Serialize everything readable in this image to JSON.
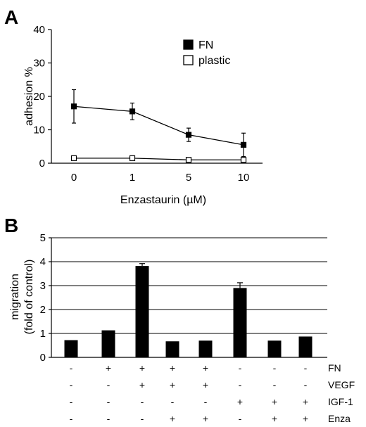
{
  "chart_data": [
    {
      "panel": "A",
      "type": "line",
      "x": [
        "0",
        "1",
        "5",
        "10"
      ],
      "xlabel": "Enzastaurin (µM)",
      "ylabel": "adhesion %",
      "ylim": [
        0,
        40
      ],
      "yticks": [
        "0",
        "10",
        "20",
        "30",
        "40"
      ],
      "grid": false,
      "legend_position": "top-right",
      "series": [
        {
          "name": "FN",
          "values": [
            17,
            15.5,
            8.5,
            5.5
          ],
          "errors": [
            5,
            2.5,
            2,
            3.5
          ],
          "marker": "filled-square",
          "color": "#000000"
        },
        {
          "name": "plastic",
          "values": [
            1.5,
            1.5,
            1,
            1
          ],
          "errors": [
            0,
            0,
            0,
            0
          ],
          "marker": "open-square",
          "color": "#000000"
        }
      ]
    },
    {
      "panel": "B",
      "type": "bar",
      "ylabel": "migration",
      "ylabel2": "(fold of control)",
      "ylim": [
        0,
        5
      ],
      "yticks": [
        "0",
        "1",
        "2",
        "3",
        "4",
        "5"
      ],
      "grid": true,
      "bar_color": "#000000",
      "values": [
        0.72,
        1.13,
        3.82,
        0.67,
        0.7,
        2.9,
        0.7,
        0.87
      ],
      "errors": [
        0,
        0,
        0.1,
        0,
        0,
        0.22,
        0,
        0
      ],
      "conditions": [
        {
          "label": "FN",
          "signs": [
            "-",
            "+",
            "+",
            "+",
            "+",
            "-",
            "-",
            "-"
          ]
        },
        {
          "label": "VEGF",
          "signs": [
            "-",
            "-",
            "+",
            "+",
            "+",
            "-",
            "-",
            "-"
          ]
        },
        {
          "label": "IGF-1",
          "signs": [
            "-",
            "-",
            "-",
            "-",
            "-",
            "+",
            "+",
            "+"
          ]
        },
        {
          "label": "Enza",
          "signs": [
            "-",
            "-",
            "-",
            "+",
            "+",
            "-",
            "+",
            "+"
          ]
        }
      ]
    }
  ]
}
